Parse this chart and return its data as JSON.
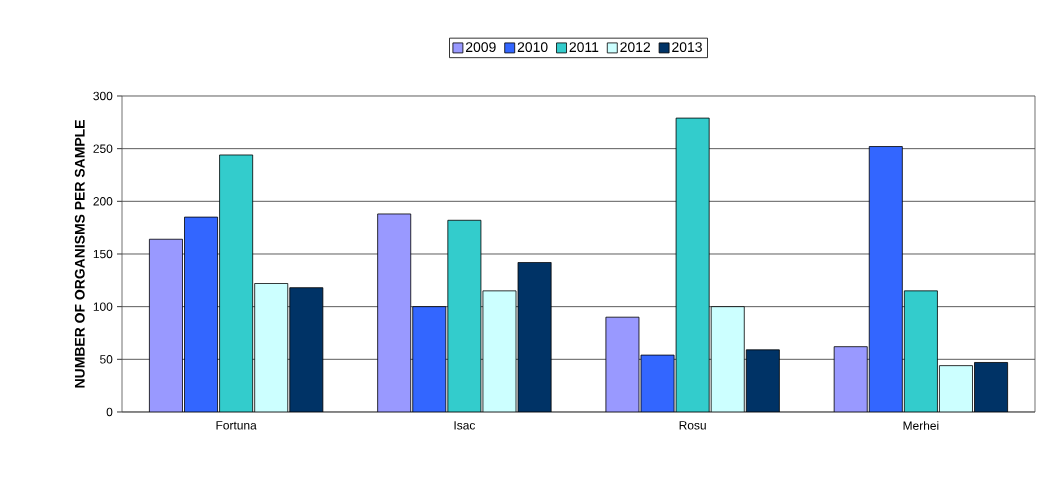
{
  "chart_data": {
    "type": "bar",
    "ylabel": "NUMBER OF ORGANISMS PER SAMPLE",
    "categories": [
      "Fortuna",
      "Isac",
      "Rosu",
      "Merhei"
    ],
    "series": [
      {
        "name": "2009",
        "color": "#9999ff",
        "values": [
          164,
          188,
          90,
          62
        ]
      },
      {
        "name": "2010",
        "color": "#3366ff",
        "values": [
          185,
          100,
          54,
          252
        ]
      },
      {
        "name": "2011",
        "color": "#33cccc",
        "values": [
          244,
          182,
          279,
          115
        ]
      },
      {
        "name": "2012",
        "color": "#ccffff",
        "values": [
          122,
          115,
          100,
          44
        ]
      },
      {
        "name": "2013",
        "color": "#003366",
        "values": [
          118,
          142,
          59,
          47
        ]
      }
    ],
    "ylim": [
      0,
      300
    ],
    "yticks": [
      0,
      50,
      100,
      150,
      200,
      250,
      300
    ],
    "grid": "y",
    "legend": "top"
  }
}
